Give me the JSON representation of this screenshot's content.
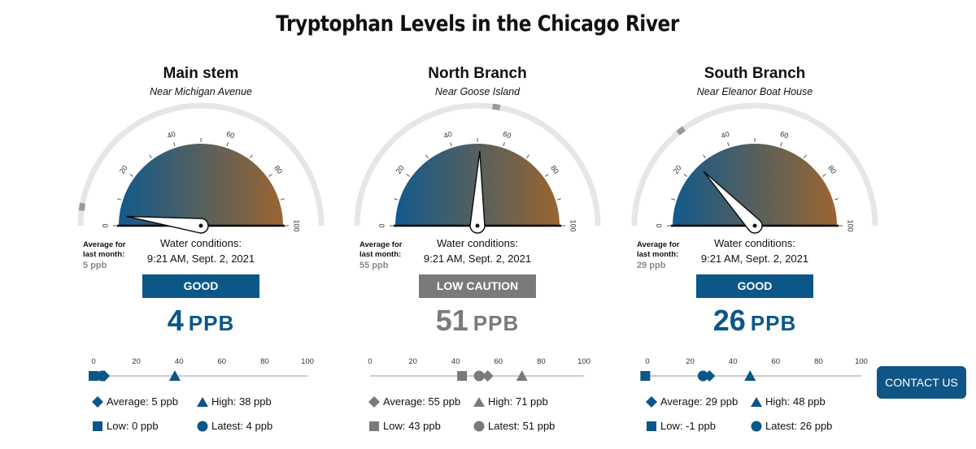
{
  "page": {
    "title": "Tryptophan Levels in the Chicago River"
  },
  "colors": {
    "good": "#0b5788",
    "caution": "#7a7a7a",
    "gradient_left": "#125a8c",
    "gradient_right": "#9a6530"
  },
  "gauge_ticks": [
    "0",
    "20",
    "40",
    "60",
    "80",
    "100"
  ],
  "scale_ticks": [
    "0",
    "20",
    "40",
    "60",
    "80",
    "100"
  ],
  "contact": {
    "label": "CONTACT US"
  },
  "panels": [
    {
      "name": "Main stem",
      "location": "Near Michigan Avenue",
      "avg_label": "Average for last month:",
      "avg_value": "5 ppb",
      "average": 5,
      "latest": 4,
      "high": 38,
      "low": 0,
      "water_label": "Water conditions:",
      "time": "9:21 AM, Sept. 2, 2021",
      "status": "GOOD",
      "status_color": "#0b5788",
      "reading_value": "4",
      "reading_unit": "PPB",
      "legend": {
        "average": "Average: 5 ppb",
        "high": "High: 38 ppb",
        "low": "Low: 0 ppb",
        "latest": "Latest: 4 ppb"
      }
    },
    {
      "name": "North Branch",
      "location": "Near Goose Island",
      "avg_label": "Average for last month:",
      "avg_value": "55 ppb",
      "average": 55,
      "latest": 51,
      "high": 71,
      "low": 43,
      "water_label": "Water conditions:",
      "time": "9:21 AM, Sept. 2, 2021",
      "status": "LOW CAUTION",
      "status_color": "#7a7a7a",
      "reading_value": "51",
      "reading_unit": "PPB",
      "legend": {
        "average": "Average: 55 ppb",
        "high": "High: 71 ppb",
        "low": "Low: 43 ppb",
        "latest": "Latest: 51 ppb"
      }
    },
    {
      "name": "South Branch",
      "location": "Near Eleanor Boat House",
      "avg_label": "Average for last month:",
      "avg_value": "29 ppb",
      "average": 29,
      "latest": 26,
      "high": 48,
      "low": -1,
      "water_label": "Water conditions:",
      "time": "9:21 AM, Sept. 2, 2021",
      "status": "GOOD",
      "status_color": "#0b5788",
      "reading_value": "26",
      "reading_unit": "PPB",
      "legend": {
        "average": "Average: 29 ppb",
        "high": "High: 48 ppb",
        "low": "Low: -1 ppb",
        "latest": "Latest: 26 ppb"
      }
    }
  ]
}
